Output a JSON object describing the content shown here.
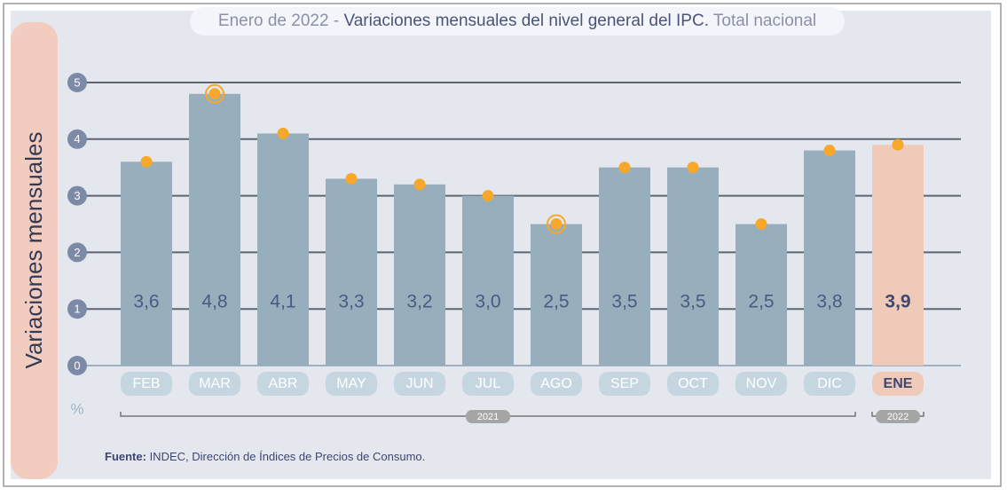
{
  "chart_data": {
    "type": "bar",
    "title_parts": [
      "Enero de 2022 - ",
      "Variaciones mensuales del nivel general del IPC.",
      " Total nacional"
    ],
    "y_label": "Variaciones mensuales",
    "unit_label": "%",
    "categories": [
      "FEB",
      "MAR",
      "ABR",
      "MAY",
      "JUN",
      "JUL",
      "AGO",
      "SEP",
      "OCT",
      "NOV",
      "DIC",
      "ENE"
    ],
    "values": [
      3.6,
      4.8,
      4.1,
      3.3,
      3.2,
      3.0,
      2.5,
      3.5,
      3.5,
      2.5,
      3.8,
      3.9
    ],
    "value_labels": [
      "3,6",
      "4,8",
      "4,1",
      "3,3",
      "3,2",
      "3,0",
      "2,5",
      "3,5",
      "3,5",
      "2,5",
      "3,8",
      "3,9"
    ],
    "colors": [
      "#97afbd",
      "#97afbd",
      "#97afbd",
      "#97afbd",
      "#97afbd",
      "#97afbd",
      "#97afbd",
      "#97afbd",
      "#97afbd",
      "#97afbd",
      "#97afbd",
      "#f0cab8"
    ],
    "dot_color": "#f7a72a",
    "highlight": [
      1,
      6
    ],
    "groups": [
      {
        "label": "2021",
        "start": 0,
        "end": 10
      },
      {
        "label": "2022",
        "start": 11,
        "end": 11
      }
    ],
    "ylim": [
      0,
      5
    ],
    "yticks": [
      0,
      1,
      2,
      3,
      4,
      5
    ],
    "grid": true,
    "source_label": "Fuente:",
    "source_text": " INDEC, Dirección de Índices de Precios de Consumo."
  }
}
